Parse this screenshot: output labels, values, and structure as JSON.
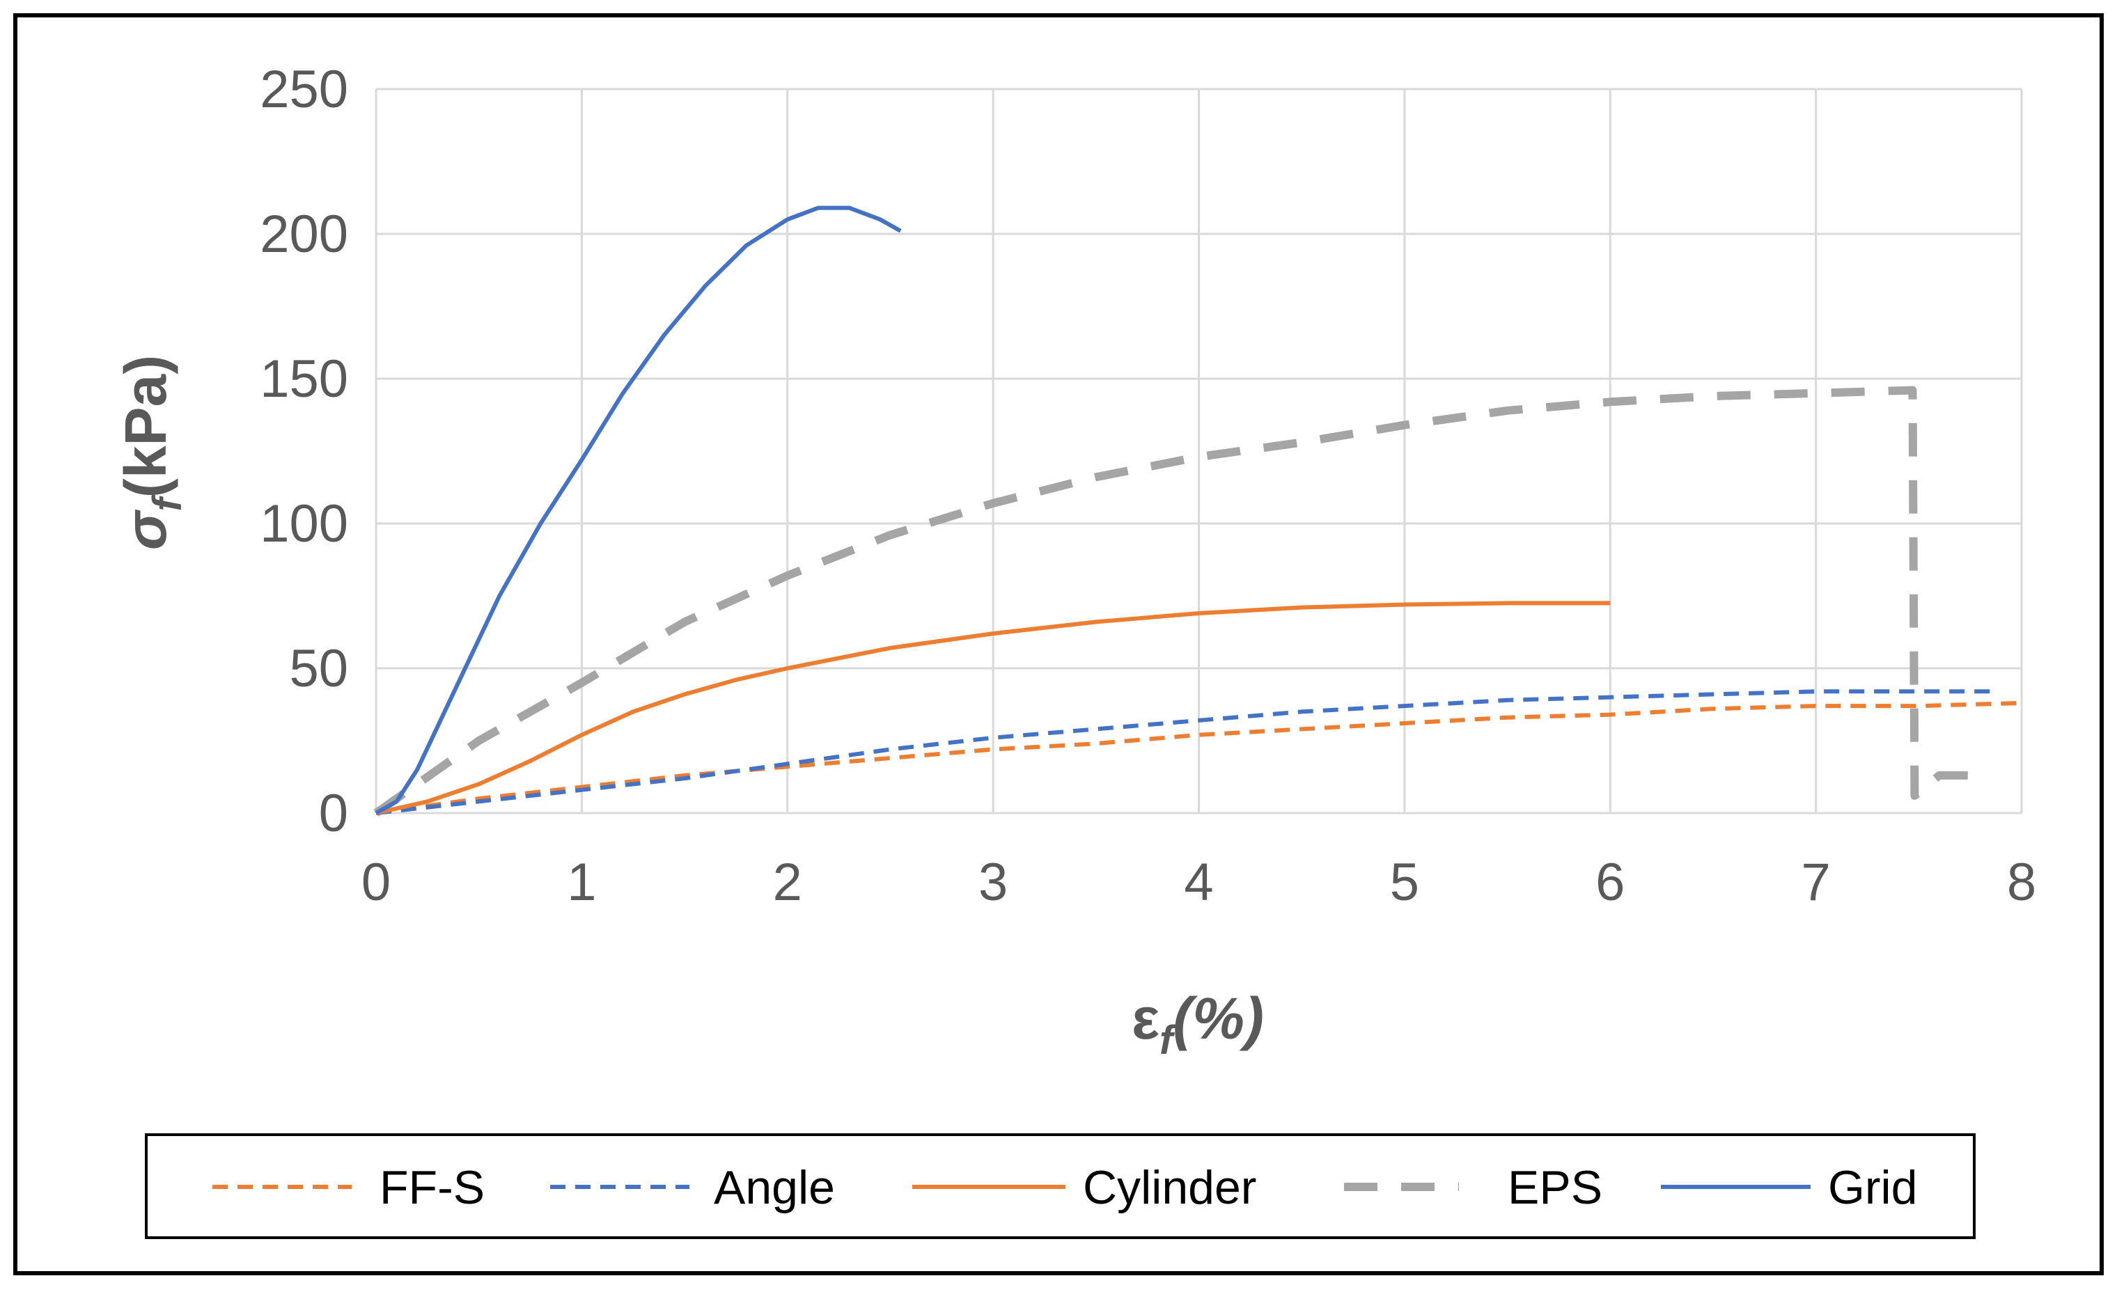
{
  "chart_data": {
    "type": "line",
    "title": "",
    "xlabel": "εf(%)",
    "ylabel": "σf(kPa)",
    "xlabel_parts": {
      "main": "ε",
      "sub": "f",
      "rest": "(%)"
    },
    "ylabel_parts": {
      "main": "σ",
      "sub": "f",
      "rest": "(kPa)"
    },
    "xlim": [
      0,
      8
    ],
    "ylim": [
      0,
      250
    ],
    "x_ticks": [
      "0",
      "1",
      "2",
      "3",
      "4",
      "5",
      "6",
      "7",
      "8"
    ],
    "y_ticks": [
      "0",
      "50",
      "100",
      "150",
      "200",
      "250"
    ],
    "grid": true,
    "legend_position": "bottom",
    "series": [
      {
        "name": "FF-S",
        "color": "#ED7D31",
        "style": "dashed",
        "x": [
          0,
          0.5,
          1,
          1.5,
          2,
          2.5,
          3,
          3.5,
          4,
          4.5,
          5,
          5.5,
          6,
          6.5,
          7,
          7.5,
          8
        ],
        "y": [
          0,
          5,
          9,
          13,
          16,
          19,
          22,
          24,
          27,
          29,
          31,
          33,
          34,
          36,
          37,
          37,
          38
        ]
      },
      {
        "name": "Angle",
        "color": "#4472C4",
        "style": "dashed",
        "x": [
          0,
          0.5,
          1,
          1.5,
          2,
          2.5,
          3,
          3.5,
          4,
          4.5,
          5,
          5.5,
          6,
          6.5,
          7,
          7.5,
          7.85
        ],
        "y": [
          0,
          4,
          8,
          12,
          17,
          22,
          26,
          29,
          32,
          35,
          37,
          39,
          40,
          41,
          42,
          42,
          42
        ]
      },
      {
        "name": "Cylinder",
        "color": "#ED7D31",
        "style": "solid",
        "x": [
          0,
          0.25,
          0.5,
          0.75,
          1,
          1.25,
          1.5,
          1.75,
          2,
          2.5,
          3,
          3.5,
          4,
          4.5,
          5,
          5.5,
          6
        ],
        "y": [
          0,
          4,
          10,
          18,
          27,
          35,
          41,
          46,
          50,
          57,
          62,
          66,
          69,
          71,
          72,
          72.5,
          72.5
        ]
      },
      {
        "name": "EPS",
        "color": "#A5A5A5",
        "style": "longdash",
        "x": [
          0,
          0.2,
          0.5,
          1,
          1.5,
          2,
          2.5,
          3,
          3.5,
          4,
          4.5,
          5,
          5.5,
          6,
          6.5,
          7,
          7.47,
          7.48,
          7.6,
          7.8
        ],
        "y": [
          0,
          10,
          25,
          45,
          66,
          82,
          96,
          107,
          116,
          123,
          128,
          134,
          139,
          142,
          144,
          145,
          146,
          6,
          13,
          13
        ]
      },
      {
        "name": "Grid",
        "color": "#4472C4",
        "style": "solid",
        "x": [
          0,
          0.1,
          0.2,
          0.4,
          0.6,
          0.8,
          1,
          1.2,
          1.4,
          1.6,
          1.8,
          2,
          2.15,
          2.3,
          2.45,
          2.55
        ],
        "y": [
          0,
          4,
          15,
          45,
          75,
          100,
          122,
          145,
          165,
          182,
          196,
          205,
          209,
          209,
          205,
          201
        ]
      }
    ]
  }
}
